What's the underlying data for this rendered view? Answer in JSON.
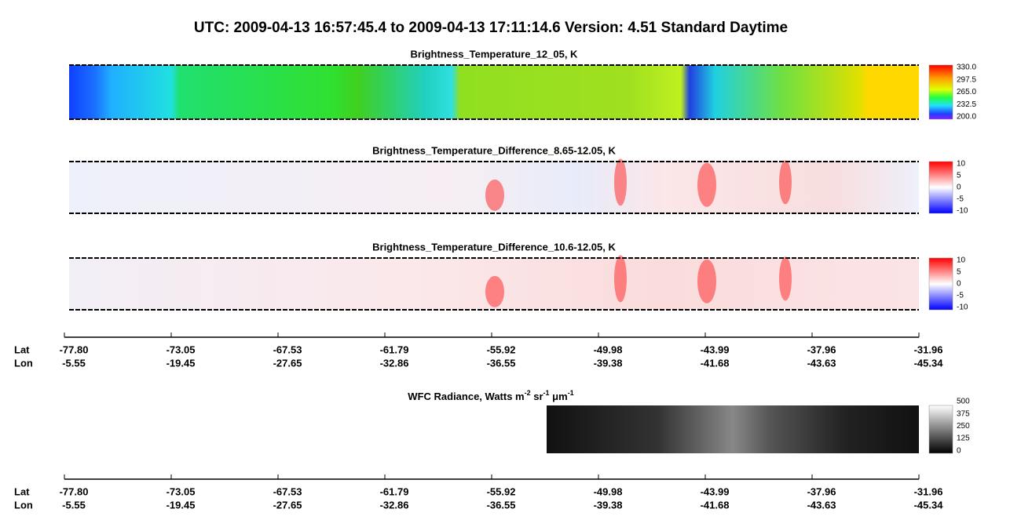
{
  "title": "UTC:  2009-04-13   16:57:45.4  to  2009-04-13   17:11:14.6    Version: 4.51  Standard Daytime",
  "panels": [
    {
      "title": "Brightness_Temperature_12_05, K",
      "colorbar": [
        "330.0",
        "297.5",
        "265.0",
        "232.5",
        "200.0"
      ]
    },
    {
      "title": "Brightness_Temperature_Difference_8.65-12.05, K",
      "colorbar": [
        "10",
        "5",
        "0",
        "-5",
        "-10"
      ]
    },
    {
      "title": "Brightness_Temperature_Difference_10.6-12.05, K",
      "colorbar": [
        "10",
        "5",
        "0",
        "-5",
        "-10"
      ]
    }
  ],
  "axis": {
    "lat_label": "Lat",
    "lon_label": "Lon",
    "lat": [
      "-77.80",
      "-73.05",
      "-67.53",
      "-61.79",
      "-55.92",
      "-49.98",
      "-43.99",
      "-37.96",
      "-31.96"
    ],
    "lon": [
      "-5.55",
      "-19.45",
      "-27.65",
      "-32.86",
      "-36.55",
      "-39.38",
      "-41.68",
      "-43.63",
      "-45.34"
    ]
  },
  "wfc": {
    "title_parts": [
      "WFC Radiance, Watts m",
      "-2",
      " sr",
      "-1",
      " μm",
      "-1"
    ],
    "colorbar": [
      "500",
      "375",
      "250",
      "125",
      "0"
    ]
  }
}
